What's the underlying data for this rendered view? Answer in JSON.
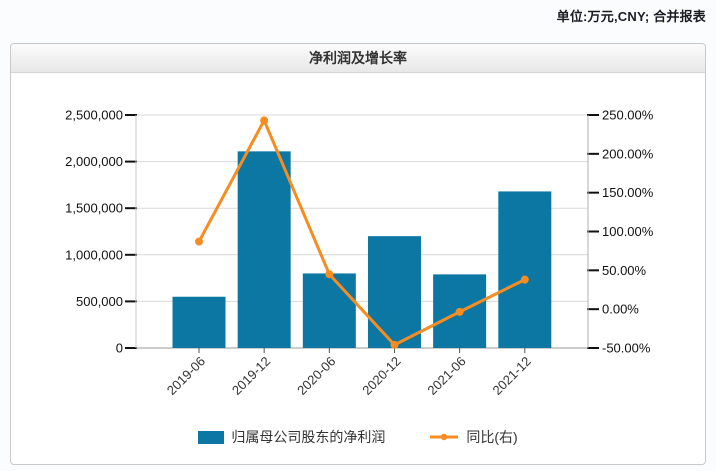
{
  "header": {
    "unit_note": "单位:万元,CNY; 合并报表"
  },
  "panel": {
    "title": "净利润及增长率"
  },
  "colors": {
    "bar": "#0D77A4",
    "line": "#F78C20",
    "grid": "#d9d9d9",
    "axis_left": "#c8c8c8",
    "axis_right": "#b0b0b0",
    "axis_bottom": "#999999",
    "tick": "#111111",
    "label_text": "#333333"
  },
  "chart_data": {
    "type": "combo-bar-line-dual-axis",
    "title": "净利润及增长率",
    "categories": [
      "2019-06",
      "2019-12",
      "2020-06",
      "2020-12",
      "2021-06",
      "2021-12"
    ],
    "series": [
      {
        "name": "归属母公司股东的净利润",
        "type": "bar",
        "axis": "left",
        "color": "#0D77A4",
        "values": [
          550000,
          2110000,
          800000,
          1200000,
          790000,
          1680000
        ]
      },
      {
        "name": "同比(右)",
        "type": "line",
        "axis": "right",
        "color": "#F78C20",
        "values": [
          87,
          243,
          45,
          -46,
          -3.5,
          38
        ]
      }
    ],
    "left_axis": {
      "min": 0,
      "max": 2500000,
      "step": 500000,
      "tick_labels": [
        "2,500,000",
        "2,000,000",
        "1,500,000",
        "1,000,000",
        "500,000",
        "0"
      ]
    },
    "right_axis": {
      "min": -50,
      "max": 250,
      "step": 50,
      "tick_labels": [
        "250.00%",
        "200.00%",
        "150.00%",
        "100.00%",
        "50.00%",
        "0.00%",
        "-50.00%"
      ]
    },
    "grid": true,
    "legend_position": "bottom"
  }
}
